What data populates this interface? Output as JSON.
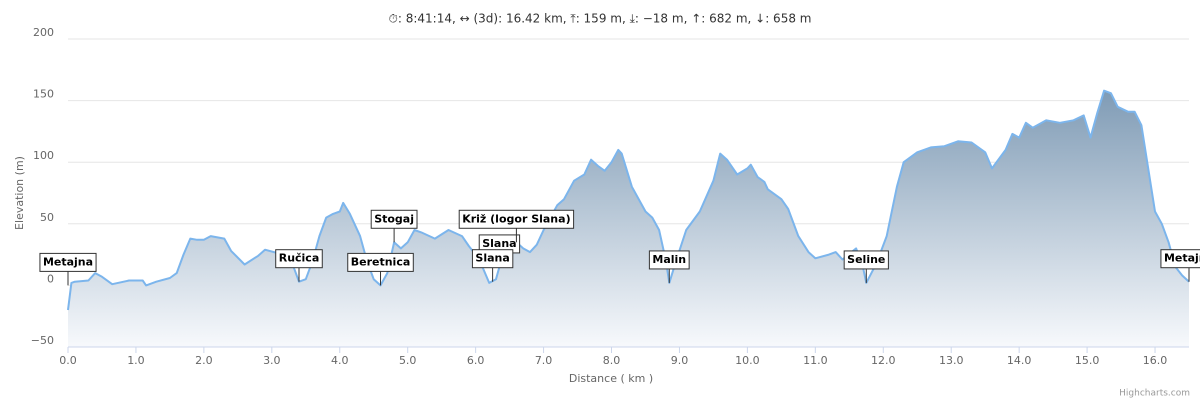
{
  "chart_data": {
    "type": "area",
    "title": "⏱: 8:41:14, ↔ (3d): 16.42 km, ⤒: 159 m, ⤓: −18 m, ↑: 682 m, ↓: 658 m",
    "x_label": "Distance ( km )",
    "y_label": "Elevation (m)",
    "credits": "Highcharts.com",
    "color": "#7cb5ec",
    "grid": true,
    "xlim": [
      0,
      16.5
    ],
    "ylim": [
      -50,
      200
    ],
    "xticks": [
      {
        "value": 0,
        "label": "0.0"
      },
      {
        "value": 1,
        "label": "1.0"
      },
      {
        "value": 2,
        "label": "2.0"
      },
      {
        "value": 3,
        "label": "3.0"
      },
      {
        "value": 4,
        "label": "4.0"
      },
      {
        "value": 5,
        "label": "5.0"
      },
      {
        "value": 6,
        "label": "6.0"
      },
      {
        "value": 7,
        "label": "7.0"
      },
      {
        "value": 8,
        "label": "8.0"
      },
      {
        "value": 9,
        "label": "9.0"
      },
      {
        "value": 10,
        "label": "10.0"
      },
      {
        "value": 11,
        "label": "11.0"
      },
      {
        "value": 12,
        "label": "12.0"
      },
      {
        "value": 13,
        "label": "13.0"
      },
      {
        "value": 14,
        "label": "14.0"
      },
      {
        "value": 15,
        "label": "15.0"
      },
      {
        "value": 16,
        "label": "16.0"
      }
    ],
    "yticks": [
      {
        "value": -50,
        "label": "−50"
      },
      0,
      50,
      100,
      150,
      200
    ],
    "x": [
      0,
      0.05,
      0.1,
      0.3,
      0.4,
      0.5,
      0.65,
      0.9,
      1.1,
      1.15,
      1.3,
      1.5,
      1.6,
      1.7,
      1.8,
      1.9,
      2.0,
      2.1,
      2.3,
      2.4,
      2.6,
      2.8,
      2.9,
      3.1,
      3.3,
      3.4,
      3.5,
      3.6,
      3.7,
      3.8,
      3.9,
      4.0,
      4.05,
      4.15,
      4.3,
      4.4,
      4.5,
      4.6,
      4.7,
      4.8,
      4.9,
      5.0,
      5.1,
      5.2,
      5.4,
      5.6,
      5.8,
      5.9,
      6.0,
      6.1,
      6.2,
      6.3,
      6.35,
      6.5,
      6.6,
      6.7,
      6.8,
      6.9,
      7.0,
      7.2,
      7.3,
      7.45,
      7.6,
      7.7,
      7.8,
      7.9,
      8.0,
      8.1,
      8.15,
      8.3,
      8.5,
      8.6,
      8.7,
      8.8,
      8.85,
      8.95,
      9.1,
      9.3,
      9.5,
      9.6,
      9.7,
      9.85,
      10.0,
      10.05,
      10.15,
      10.25,
      10.3,
      10.5,
      10.6,
      10.75,
      10.9,
      11.0,
      11.2,
      11.3,
      11.4,
      11.6,
      11.7,
      11.75,
      11.9,
      12.05,
      12.2,
      12.3,
      12.5,
      12.7,
      12.9,
      13.1,
      13.3,
      13.5,
      13.6,
      13.8,
      13.9,
      14.0,
      14.1,
      14.2,
      14.4,
      14.6,
      14.8,
      14.95,
      15.05,
      15.15,
      15.25,
      15.35,
      15.45,
      15.6,
      15.7,
      15.8,
      15.9,
      16.0,
      16.1,
      16.2,
      16.3,
      16.4,
      16.5
    ],
    "values": [
      -20,
      2,
      3,
      4,
      10,
      7,
      1,
      4,
      4,
      0,
      3,
      6,
      10,
      25,
      38,
      37,
      37,
      40,
      38,
      28,
      17,
      24,
      29,
      26,
      18,
      3,
      5,
      20,
      40,
      55,
      58,
      60,
      67,
      58,
      40,
      20,
      5,
      0,
      10,
      35,
      30,
      35,
      45,
      43,
      38,
      45,
      40,
      32,
      25,
      15,
      2,
      5,
      15,
      30,
      35,
      30,
      27,
      33,
      45,
      65,
      70,
      85,
      90,
      102,
      97,
      93,
      100,
      110,
      107,
      80,
      60,
      55,
      45,
      20,
      2,
      20,
      45,
      60,
      85,
      107,
      102,
      90,
      95,
      98,
      88,
      84,
      78,
      70,
      62,
      40,
      27,
      22,
      25,
      27,
      21,
      30,
      15,
      2,
      18,
      40,
      80,
      100,
      108,
      112,
      113,
      117,
      116,
      108,
      95,
      110,
      123,
      120,
      132,
      128,
      134,
      132,
      134,
      138,
      120,
      140,
      158,
      156,
      145,
      141,
      141,
      130,
      95,
      60,
      50,
      35,
      15,
      8,
      3
    ],
    "annotations": [
      {
        "text": "Metajna",
        "x": 0,
        "y": 0
      },
      {
        "text": "Ručica",
        "x": 3.4,
        "y": 3
      },
      {
        "text": "Beretnica",
        "x": 4.6,
        "y": 0
      },
      {
        "text": "Stogaj",
        "x": 4.8,
        "y": 35
      },
      {
        "text": "Slana",
        "x": 6.35,
        "y": 15
      },
      {
        "text": "Slana",
        "x": 6.25,
        "y": 3
      },
      {
        "text": "Križ (logor Slana)",
        "x": 6.6,
        "y": 35
      },
      {
        "text": "Malin",
        "x": 8.85,
        "y": 2
      },
      {
        "text": "Seline",
        "x": 11.75,
        "y": 2
      },
      {
        "text": "Metajna",
        "x": 16.5,
        "y": 3
      }
    ]
  }
}
